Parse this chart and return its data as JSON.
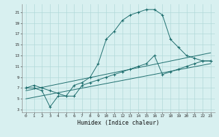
{
  "xlabel": "Humidex (Indice chaleur)",
  "bg_color": "#d8f0f0",
  "grid_color": "#b0d8d8",
  "line_color": "#1a6b6b",
  "xlim": [
    -0.5,
    23.5
  ],
  "ylim": [
    2.5,
    22.5
  ],
  "yticks": [
    3,
    5,
    7,
    9,
    11,
    13,
    15,
    17,
    19,
    21
  ],
  "xticks": [
    0,
    1,
    2,
    3,
    4,
    5,
    6,
    7,
    8,
    9,
    10,
    11,
    12,
    13,
    14,
    15,
    16,
    17,
    18,
    19,
    20,
    21,
    22,
    23
  ],
  "line1_x": [
    0,
    1,
    2,
    3,
    4,
    5,
    6,
    7,
    8,
    9,
    10,
    11,
    12,
    13,
    14,
    15,
    16,
    17,
    18,
    19,
    20,
    21,
    22,
    23
  ],
  "line1_y": [
    7.0,
    7.5,
    7.0,
    6.5,
    6.0,
    5.5,
    7.5,
    8.0,
    9.0,
    11.5,
    16.0,
    17.5,
    19.5,
    20.5,
    21.0,
    21.5,
    21.5,
    20.5,
    16.0,
    14.5,
    13.0,
    12.5,
    12.0,
    12.0
  ],
  "line2_x": [
    0,
    1,
    2,
    3,
    4,
    5,
    6,
    7,
    8,
    9,
    10,
    11,
    12,
    13,
    14,
    15,
    16,
    17,
    18,
    19,
    20,
    21,
    22,
    23
  ],
  "line2_y": [
    7.0,
    7.0,
    6.5,
    3.5,
    5.5,
    5.5,
    5.5,
    7.5,
    8.0,
    8.5,
    9.0,
    9.5,
    10.0,
    10.5,
    11.0,
    11.5,
    13.0,
    9.5,
    10.0,
    10.5,
    11.0,
    11.5,
    12.0,
    12.0
  ],
  "line3_x": [
    0,
    23
  ],
  "line3_y": [
    5.0,
    11.5
  ],
  "line4_x": [
    0,
    23
  ],
  "line4_y": [
    6.5,
    13.5
  ]
}
